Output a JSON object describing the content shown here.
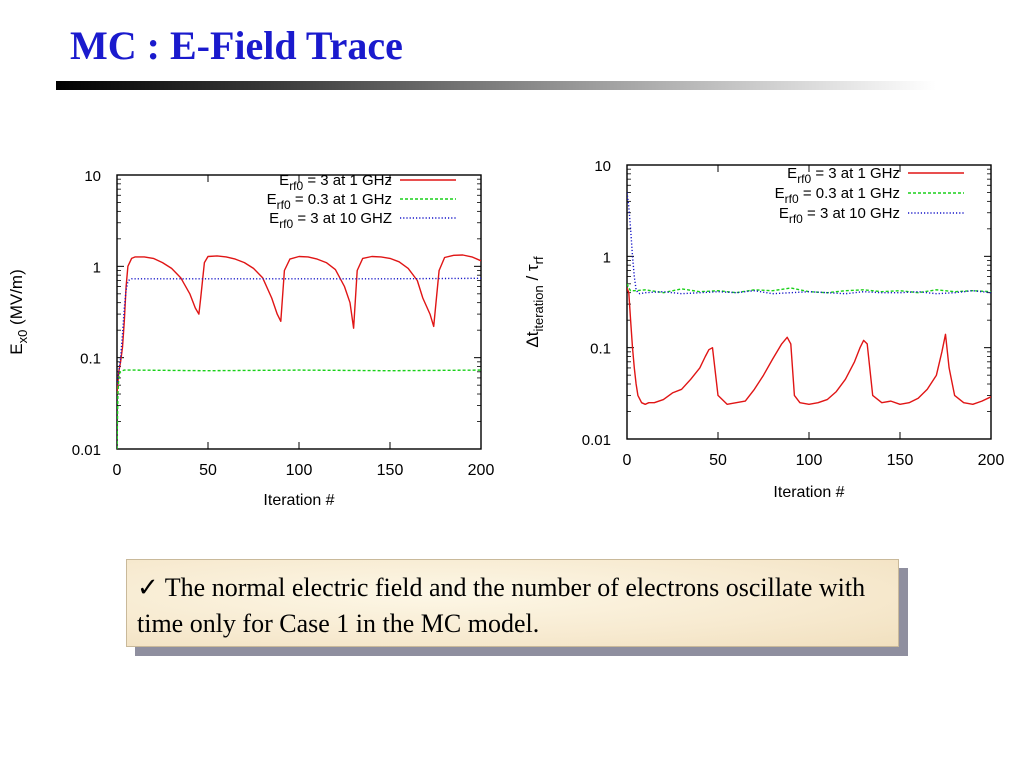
{
  "slide": {
    "title": "MC : E-Field Trace",
    "note": {
      "check": "✓",
      "text": "The normal electric field and the number of electrons oscillate with time only for Case 1 in the MC model."
    }
  },
  "colors": {
    "title": "#1a1acd",
    "red": "#e01515",
    "green": "#18d018",
    "blue": "#1515c8"
  },
  "chart_data": [
    {
      "type": "line",
      "y_scale": "log",
      "xlim": [
        0,
        200
      ],
      "ylim": [
        0.01,
        10
      ],
      "xticks": [
        "0",
        "50",
        "100",
        "150",
        "200"
      ],
      "yticks": [
        "0.01",
        "0.1",
        "1",
        "10"
      ],
      "xlabel": "Iteration #",
      "ylabel": {
        "main": "E",
        "sub": "x0",
        "rest": " (MV/m)"
      },
      "legend_position": "top-right",
      "series": [
        {
          "label_main": "E",
          "label_sub": "rf0",
          "label_rest": " = 3 at 1 GHz",
          "color": "#e01515",
          "style": "solid",
          "x": [
            0,
            1,
            2,
            3,
            4,
            5,
            6,
            8,
            10,
            15,
            20,
            25,
            30,
            35,
            40,
            43,
            45,
            46,
            48,
            50,
            55,
            60,
            65,
            70,
            75,
            80,
            85,
            88,
            90,
            92,
            95,
            100,
            105,
            110,
            115,
            120,
            125,
            128,
            130,
            132,
            135,
            140,
            145,
            150,
            155,
            160,
            165,
            168,
            172,
            174,
            177,
            180,
            185,
            190,
            195,
            200
          ],
          "y": [
            0.04,
            0.07,
            0.09,
            0.13,
            0.25,
            0.6,
            1.0,
            1.22,
            1.27,
            1.27,
            1.22,
            1.1,
            0.95,
            0.75,
            0.5,
            0.35,
            0.3,
            0.45,
            1.1,
            1.28,
            1.3,
            1.27,
            1.2,
            1.1,
            0.95,
            0.75,
            0.45,
            0.3,
            0.25,
            0.9,
            1.2,
            1.28,
            1.27,
            1.2,
            1.1,
            0.92,
            0.6,
            0.4,
            0.21,
            0.9,
            1.22,
            1.28,
            1.27,
            1.22,
            1.12,
            0.95,
            0.7,
            0.45,
            0.3,
            0.22,
            0.9,
            1.25,
            1.32,
            1.33,
            1.27,
            1.15
          ]
        },
        {
          "label_main": "E",
          "label_sub": "rf0",
          "label_rest": " = 0.3 at 1 GHz",
          "color": "#18d018",
          "style": "dashed",
          "x": [
            0,
            0.5,
            1,
            1.5,
            2,
            3,
            4,
            5,
            10,
            50,
            100,
            150,
            200
          ],
          "y": [
            0.01,
            0.04,
            0.06,
            0.068,
            0.07,
            0.072,
            0.073,
            0.073,
            0.073,
            0.072,
            0.073,
            0.072,
            0.073
          ]
        },
        {
          "label_main": "E",
          "label_sub": "rf0",
          "label_rest": " = 3 at 10 GHZ",
          "color": "#1515c8",
          "style": "dotted",
          "x": [
            0,
            1,
            2,
            3,
            4,
            5,
            6,
            7,
            8,
            10,
            20,
            50,
            100,
            150,
            200
          ],
          "y": [
            0.05,
            0.07,
            0.1,
            0.18,
            0.35,
            0.55,
            0.68,
            0.72,
            0.73,
            0.73,
            0.73,
            0.73,
            0.73,
            0.73,
            0.74
          ]
        }
      ]
    },
    {
      "type": "line",
      "y_scale": "log",
      "xlim": [
        0,
        200
      ],
      "ylim": [
        0.01,
        10
      ],
      "xticks": [
        "0",
        "50",
        "100",
        "150",
        "200"
      ],
      "yticks": [
        "0.01",
        "0.1",
        "1",
        "10"
      ],
      "xlabel": "Iteration #",
      "ylabel": {
        "pre": "Δt",
        "sub": "iteration",
        "rest": " / τ",
        "sub2": "rf"
      },
      "legend_position": "top-right",
      "series": [
        {
          "label_main": "E",
          "label_sub": "rf0",
          "label_rest": " = 3 at 1 GHz",
          "color": "#e01515",
          "style": "solid",
          "x": [
            0,
            1,
            2,
            3,
            4,
            5,
            6,
            8,
            10,
            12,
            15,
            20,
            25,
            30,
            35,
            40,
            43,
            45,
            47,
            50,
            55,
            60,
            65,
            70,
            75,
            80,
            85,
            88,
            90,
            92,
            95,
            100,
            105,
            110,
            115,
            120,
            125,
            128,
            130,
            132,
            135,
            140,
            145,
            150,
            155,
            160,
            165,
            170,
            173,
            175,
            177,
            180,
            185,
            190,
            195,
            200
          ],
          "y": [
            0.45,
            0.4,
            0.2,
            0.1,
            0.06,
            0.04,
            0.03,
            0.025,
            0.024,
            0.025,
            0.025,
            0.027,
            0.032,
            0.035,
            0.045,
            0.06,
            0.08,
            0.095,
            0.1,
            0.03,
            0.024,
            0.025,
            0.026,
            0.035,
            0.05,
            0.075,
            0.11,
            0.13,
            0.11,
            0.03,
            0.025,
            0.024,
            0.025,
            0.027,
            0.033,
            0.045,
            0.07,
            0.1,
            0.12,
            0.11,
            0.03,
            0.025,
            0.026,
            0.024,
            0.025,
            0.028,
            0.035,
            0.05,
            0.09,
            0.14,
            0.06,
            0.03,
            0.025,
            0.024,
            0.026,
            0.029
          ]
        },
        {
          "label_main": "E",
          "label_sub": "rf0",
          "label_rest": " = 0.3 at 1 GHz",
          "color": "#18d018",
          "style": "dashed",
          "x": [
            0,
            1,
            2,
            5,
            10,
            20,
            30,
            40,
            50,
            60,
            70,
            80,
            90,
            100,
            110,
            120,
            130,
            140,
            150,
            160,
            170,
            180,
            190,
            200
          ],
          "y": [
            0.5,
            0.45,
            0.42,
            0.42,
            0.43,
            0.4,
            0.44,
            0.41,
            0.42,
            0.4,
            0.43,
            0.42,
            0.45,
            0.41,
            0.4,
            0.42,
            0.43,
            0.41,
            0.42,
            0.4,
            0.43,
            0.41,
            0.42,
            0.41
          ]
        },
        {
          "label_main": "E",
          "label_sub": "rf0",
          "label_rest": " = 3 at 10 GHz",
          "color": "#1515c8",
          "style": "dotted",
          "x": [
            0,
            1,
            2,
            3,
            4,
            5,
            6,
            7,
            10,
            20,
            30,
            40,
            50,
            60,
            70,
            80,
            90,
            100,
            110,
            120,
            130,
            140,
            150,
            160,
            170,
            180,
            190,
            200
          ],
          "y": [
            5,
            3.5,
            2,
            1,
            0.6,
            0.43,
            0.4,
            0.39,
            0.4,
            0.41,
            0.39,
            0.4,
            0.41,
            0.4,
            0.42,
            0.39,
            0.4,
            0.41,
            0.4,
            0.39,
            0.41,
            0.4,
            0.4,
            0.41,
            0.39,
            0.4,
            0.42,
            0.4
          ]
        }
      ]
    }
  ]
}
